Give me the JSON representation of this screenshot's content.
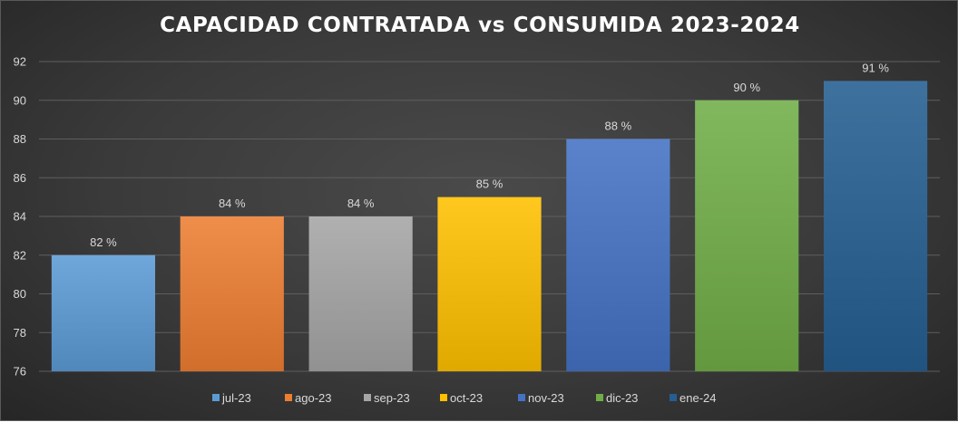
{
  "chart_data": {
    "type": "bar",
    "title": "CAPACIDAD CONTRATADA vs CONSUMIDA 2023-2024",
    "categories": [
      "jul-23",
      "ago-23",
      "sep-23",
      "oct-23",
      "nov-23",
      "dic-23",
      "ene-24"
    ],
    "values": [
      82,
      84,
      84,
      85,
      88,
      90,
      91
    ],
    "data_labels": [
      "82 %",
      "84 %",
      "84 %",
      "85 %",
      "88 %",
      "90 %",
      "91 %"
    ],
    "colors": [
      "#5b9bd5",
      "#ed7d31",
      "#a5a5a5",
      "#ffc000",
      "#4472c4",
      "#70ad47",
      "#255e91"
    ],
    "ylim": [
      76,
      92
    ],
    "yticks": [
      "76",
      "78",
      "80",
      "82",
      "84",
      "86",
      "88",
      "90",
      "92"
    ],
    "grid": true,
    "legend_position": "bottom",
    "xlabel": "",
    "ylabel": ""
  }
}
